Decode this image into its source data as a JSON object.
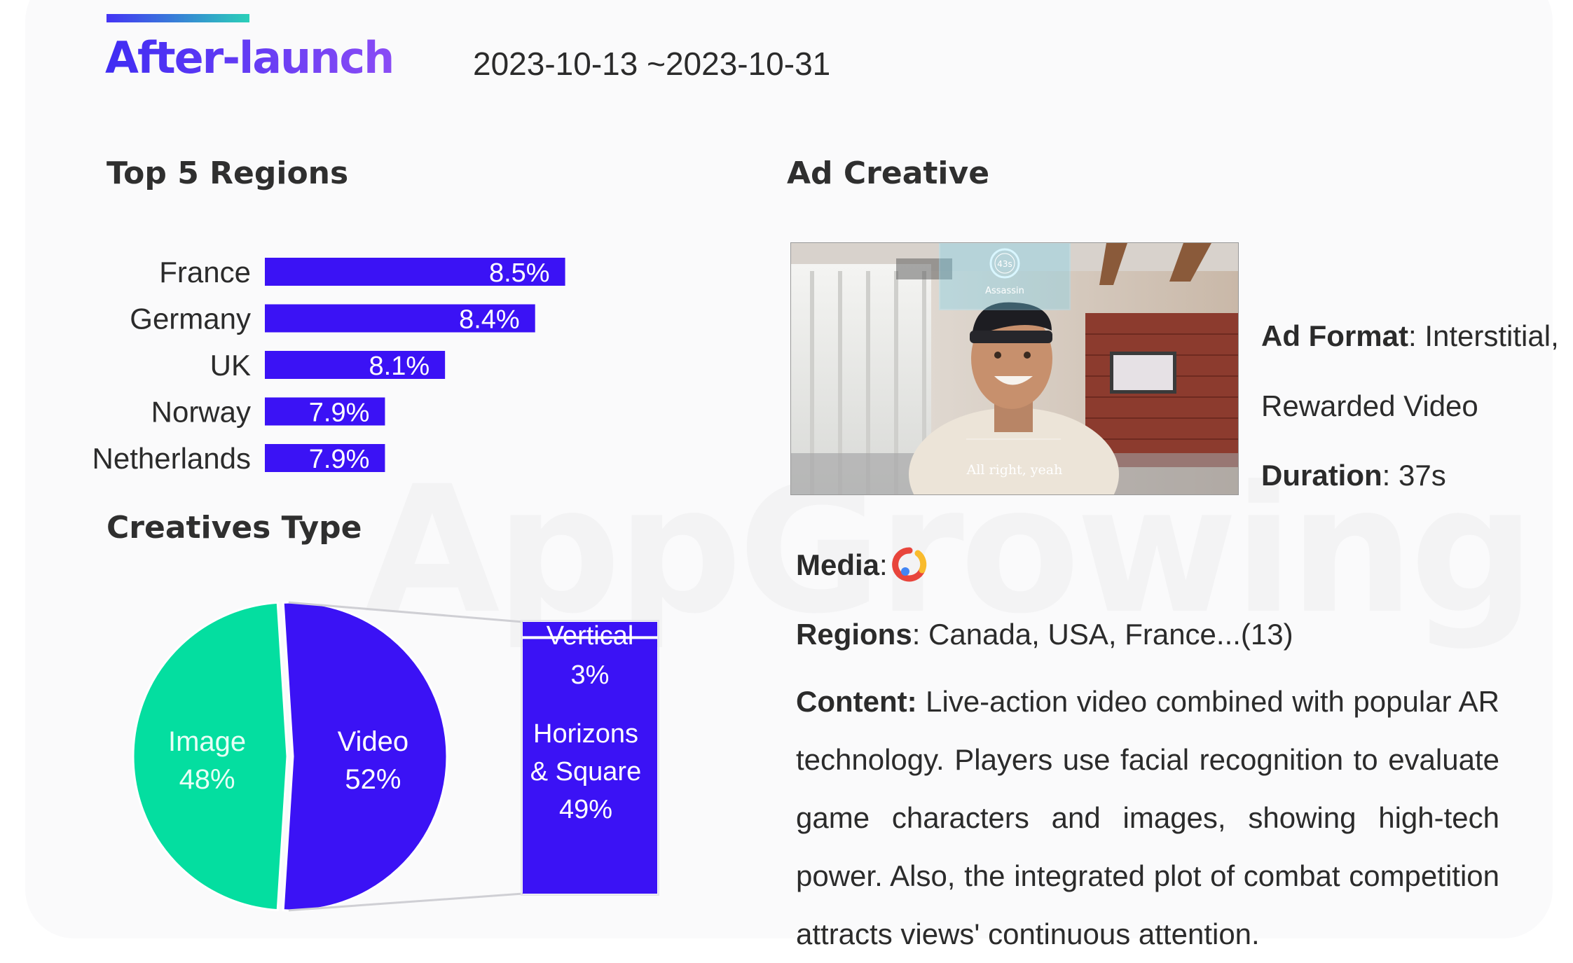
{
  "header": {
    "title": "After-launch",
    "date_range": "2023-10-13 ~2023-10-31"
  },
  "regions_section": {
    "title": "Top 5 Regions"
  },
  "creatives_section": {
    "title": "Creatives Type"
  },
  "ad_section": {
    "title": "Ad Creative"
  },
  "watermark": "AppGrowing",
  "colors": {
    "video": "#3b12f5",
    "image": "#04dea0",
    "accent_start": "#4433f5",
    "accent_end": "#2ad0b8"
  },
  "chart_data": [
    {
      "type": "bar",
      "orientation": "horizontal",
      "title": "Top 5 Regions",
      "categories": [
        "France",
        "Germany",
        "UK",
        "Norway",
        "Netherlands"
      ],
      "values": [
        8.5,
        8.4,
        8.1,
        7.9,
        7.9
      ],
      "labels": [
        "8.5%",
        "8.4%",
        "8.1%",
        "7.9%",
        "7.9%"
      ],
      "unit": "%",
      "xlim": [
        7.5,
        8.55
      ],
      "grid": false
    },
    {
      "type": "pie",
      "title": "Creatives Type",
      "slices": [
        {
          "name": "Image",
          "value": 48,
          "label": "48%",
          "color": "#04dea0"
        },
        {
          "name": "Video",
          "value": 52,
          "label": "52%",
          "color": "#3b12f5"
        }
      ],
      "breakdown_of": "Video",
      "breakdown": [
        {
          "name": "Vertical",
          "value": 3,
          "label": "3%"
        },
        {
          "name_lines": [
            "Horizons",
            "& Square"
          ],
          "value": 49,
          "label": "49%"
        }
      ]
    }
  ],
  "ad_creative": {
    "hud_timer": "43s",
    "hud_label": "Assassin",
    "subtitle": "All right, yeah",
    "format_label": "Ad Format",
    "format_value_line1": "Interstitial,",
    "format_value_line2": "Rewarded Video",
    "duration_label": "Duration",
    "duration_value": "37s",
    "media_label": "Media",
    "media_icon": "google-ads-icon",
    "regions_label": "Regions",
    "regions_value": "Canada, USA, France...(13)",
    "content_label": "Content:",
    "content_value": "Live-action video combined with popular AR technology. Players use facial recognition to evaluate game characters and images, showing high-tech power. Also, the integrated plot of combat competition attracts views' continuous attention."
  }
}
